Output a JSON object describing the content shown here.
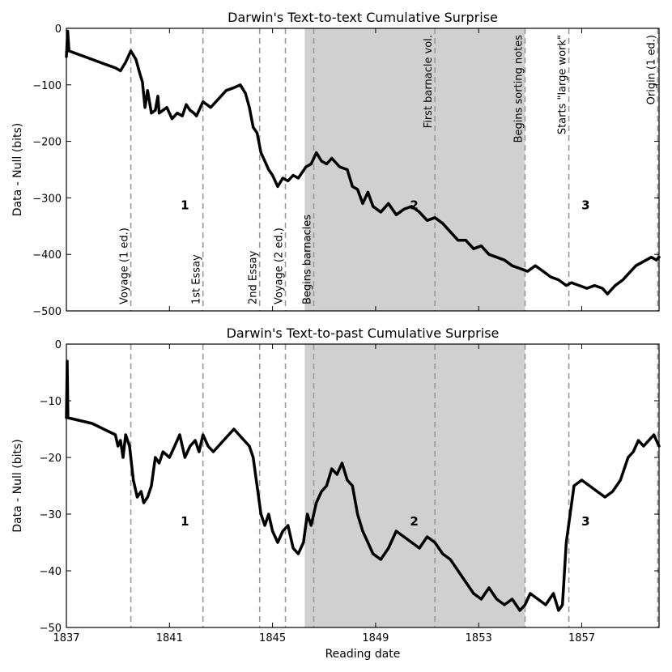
{
  "chart_data": [
    {
      "type": "line",
      "title": "Darwin's Text-to-text Cumulative Surprise",
      "xlabel": "",
      "ylabel": "Data - Null (bits)",
      "xlim": [
        1837.0,
        1860.0
      ],
      "ylim": [
        -500,
        0
      ],
      "x_ticks": [
        1837,
        1841,
        1845,
        1849,
        1853,
        1857
      ],
      "y_ticks": [
        0,
        -100,
        -200,
        -300,
        -400,
        -500
      ],
      "shaded_interval": [
        1846.25,
        1854.8
      ],
      "events": [
        {
          "x": 1839.5,
          "label": "Voyage (1 ed.)"
        },
        {
          "x": 1842.3,
          "label": "1st Essay"
        },
        {
          "x": 1844.5,
          "label": "2nd Essay"
        },
        {
          "x": 1845.5,
          "label": "Voyage (2 ed.)"
        },
        {
          "x": 1846.6,
          "label": "Begins barnacles"
        },
        {
          "x": 1851.3,
          "label": "First barnacle vol."
        },
        {
          "x": 1854.8,
          "label": "Begins sorting notes"
        },
        {
          "x": 1856.5,
          "label": "Starts \"large work\""
        },
        {
          "x": 1859.95,
          "label": "Origin (1 ed.)"
        }
      ],
      "region_labels": [
        {
          "x": 1841.6,
          "label": "1"
        },
        {
          "x": 1850.5,
          "label": "2"
        },
        {
          "x": 1857.15,
          "label": "3"
        }
      ],
      "region_label_y": -320,
      "series": [
        {
          "name": "",
          "color": "#000000",
          "x": [
            1837.0,
            1837.05,
            1837.1,
            1838.0,
            1838.9,
            1839.1,
            1839.3,
            1839.5,
            1839.7,
            1839.85,
            1839.95,
            1840.05,
            1840.15,
            1840.3,
            1840.45,
            1840.55,
            1840.6,
            1840.75,
            1840.9,
            1841.1,
            1841.3,
            1841.5,
            1841.65,
            1841.8,
            1841.95,
            1842.05,
            1842.3,
            1842.6,
            1842.9,
            1843.2,
            1843.5,
            1843.75,
            1843.95,
            1844.1,
            1844.25,
            1844.4,
            1844.55,
            1844.7,
            1844.85,
            1845.0,
            1845.2,
            1845.4,
            1845.6,
            1845.8,
            1846.0,
            1846.15,
            1846.3,
            1846.5,
            1846.7,
            1846.9,
            1847.1,
            1847.3,
            1847.6,
            1847.9,
            1848.1,
            1848.3,
            1848.5,
            1848.7,
            1848.9,
            1849.2,
            1849.5,
            1849.8,
            1850.1,
            1850.4,
            1850.7,
            1851.0,
            1851.3,
            1851.6,
            1851.9,
            1852.2,
            1852.5,
            1852.8,
            1853.1,
            1853.4,
            1853.7,
            1854.0,
            1854.3,
            1854.6,
            1854.9,
            1855.2,
            1855.5,
            1855.8,
            1856.1,
            1856.4,
            1856.6,
            1856.9,
            1857.2,
            1857.5,
            1857.8,
            1858.0,
            1858.3,
            1858.6,
            1858.9,
            1859.1,
            1859.3,
            1859.5,
            1859.7,
            1859.9,
            1860.0
          ],
          "y": [
            -50,
            -5,
            -40,
            -55,
            -70,
            -75,
            -60,
            -40,
            -55,
            -80,
            -95,
            -140,
            -110,
            -150,
            -145,
            -120,
            -150,
            -145,
            -140,
            -160,
            -150,
            -155,
            -135,
            -145,
            -150,
            -155,
            -130,
            -140,
            -125,
            -110,
            -105,
            -100,
            -115,
            -140,
            -175,
            -185,
            -220,
            -235,
            -250,
            -260,
            -280,
            -265,
            -270,
            -260,
            -265,
            -255,
            -245,
            -240,
            -220,
            -235,
            -240,
            -230,
            -245,
            -250,
            -280,
            -285,
            -310,
            -290,
            -315,
            -325,
            -310,
            -330,
            -320,
            -315,
            -325,
            -340,
            -335,
            -345,
            -360,
            -375,
            -375,
            -390,
            -385,
            -400,
            -405,
            -410,
            -420,
            -425,
            -430,
            -420,
            -430,
            -440,
            -445,
            -455,
            -450,
            -455,
            -460,
            -455,
            -460,
            -470,
            -455,
            -445,
            -430,
            -420,
            -415,
            -410,
            -405,
            -410,
            -405
          ]
        }
      ]
    },
    {
      "type": "line",
      "title": "Darwin's Text-to-past Cumulative Surprise",
      "xlabel": "Reading date",
      "ylabel": "Data - Null (bits)",
      "xlim": [
        1837.0,
        1860.0
      ],
      "ylim": [
        -50,
        0
      ],
      "x_ticks": [
        1837,
        1841,
        1845,
        1849,
        1853,
        1857
      ],
      "y_ticks": [
        0,
        -10,
        -20,
        -30,
        -40,
        -50
      ],
      "shaded_interval": [
        1846.25,
        1854.8
      ],
      "events": [
        {
          "x": 1839.5,
          "label": ""
        },
        {
          "x": 1842.3,
          "label": ""
        },
        {
          "x": 1844.5,
          "label": ""
        },
        {
          "x": 1845.5,
          "label": ""
        },
        {
          "x": 1846.6,
          "label": ""
        },
        {
          "x": 1851.3,
          "label": ""
        },
        {
          "x": 1854.8,
          "label": ""
        },
        {
          "x": 1856.5,
          "label": ""
        },
        {
          "x": 1859.95,
          "label": ""
        }
      ],
      "region_labels": [
        {
          "x": 1841.6,
          "label": "1"
        },
        {
          "x": 1850.5,
          "label": "2"
        },
        {
          "x": 1857.15,
          "label": "3"
        }
      ],
      "region_label_y": -32,
      "series": [
        {
          "name": "",
          "color": "#000000",
          "x": [
            1837.0,
            1837.03,
            1837.06,
            1838.0,
            1838.9,
            1839.0,
            1839.1,
            1839.2,
            1839.3,
            1839.45,
            1839.6,
            1839.75,
            1839.9,
            1840.0,
            1840.15,
            1840.3,
            1840.45,
            1840.6,
            1840.75,
            1841.0,
            1841.2,
            1841.4,
            1841.6,
            1841.8,
            1842.0,
            1842.15,
            1842.3,
            1842.5,
            1842.7,
            1842.9,
            1843.1,
            1843.3,
            1843.5,
            1843.7,
            1843.9,
            1844.1,
            1844.25,
            1844.4,
            1844.55,
            1844.7,
            1844.85,
            1845.0,
            1845.2,
            1845.4,
            1845.6,
            1845.8,
            1846.0,
            1846.2,
            1846.35,
            1846.5,
            1846.7,
            1846.9,
            1847.1,
            1847.3,
            1847.5,
            1847.7,
            1847.9,
            1848.1,
            1848.3,
            1848.5,
            1848.7,
            1848.9,
            1849.2,
            1849.5,
            1849.8,
            1850.1,
            1850.4,
            1850.7,
            1851.0,
            1851.3,
            1851.6,
            1851.9,
            1852.2,
            1852.5,
            1852.8,
            1853.1,
            1853.4,
            1853.7,
            1854.0,
            1854.3,
            1854.6,
            1854.8,
            1855.0,
            1855.3,
            1855.6,
            1855.9,
            1856.1,
            1856.25,
            1856.4,
            1856.55,
            1856.7,
            1857.0,
            1857.3,
            1857.6,
            1857.9,
            1858.2,
            1858.5,
            1858.8,
            1859.0,
            1859.2,
            1859.4,
            1859.6,
            1859.8,
            1860.0
          ],
          "y": [
            -13,
            -3,
            -13,
            -14,
            -16,
            -18,
            -17,
            -20,
            -16,
            -18,
            -24,
            -27,
            -26,
            -28,
            -27,
            -25,
            -20,
            -21,
            -19,
            -20,
            -18,
            -16,
            -20,
            -18,
            -17,
            -19,
            -16,
            -18,
            -19,
            -18,
            -17,
            -16,
            -15,
            -16,
            -17,
            -18,
            -20,
            -25,
            -30,
            -32,
            -30,
            -33,
            -35,
            -33,
            -32,
            -36,
            -37,
            -35,
            -30,
            -32,
            -28,
            -26,
            -25,
            -22,
            -23,
            -21,
            -24,
            -25,
            -30,
            -33,
            -35,
            -37,
            -38,
            -36,
            -33,
            -34,
            -35,
            -36,
            -34,
            -35,
            -37,
            -38,
            -40,
            -42,
            -44,
            -45,
            -43,
            -45,
            -46,
            -45,
            -47,
            -46,
            -44,
            -45,
            -46,
            -44,
            -47,
            -46,
            -35,
            -30,
            -25,
            -24,
            -25,
            -26,
            -27,
            -26,
            -24,
            -20,
            -19,
            -17,
            -18,
            -17,
            -16,
            -18
          ]
        }
      ]
    }
  ]
}
